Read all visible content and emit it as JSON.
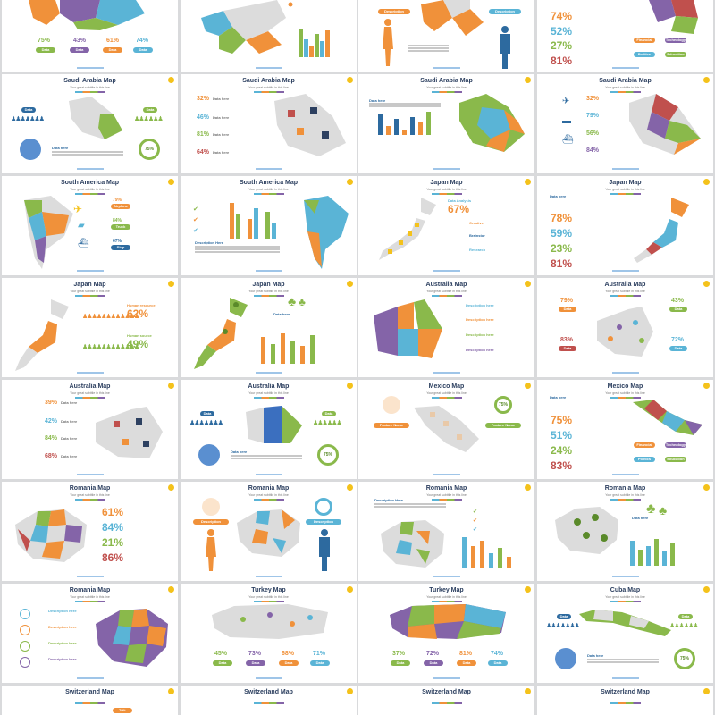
{
  "colors": {
    "blue": "#5ab4d6",
    "orange": "#f0913a",
    "green": "#8ab94b",
    "purple": "#8464a8",
    "red": "#c0504d",
    "navy": "#2d4060",
    "gold": "#f4c21b"
  },
  "slides": [
    {
      "title": "",
      "pcts": [
        "75%",
        "43%",
        "61%",
        "74%"
      ],
      "pills": [
        "Data",
        "Data",
        "Data",
        "Data"
      ]
    },
    {
      "title": "",
      "pcts": [],
      "pills": []
    },
    {
      "title": "",
      "pills": [
        "Description",
        "Description"
      ]
    },
    {
      "title": "",
      "pcts": [
        "74%",
        "52%",
        "27%",
        "81%"
      ],
      "pills": [
        "Financial",
        "Technology",
        "Politics",
        "Education"
      ]
    },
    {
      "title": "Saudi Arabia Map",
      "sub": "Your great subtitle in this line",
      "pills": [
        "Data",
        "Data"
      ],
      "circle": "75%",
      "desc": "Data here"
    },
    {
      "title": "Saudi Arabia Map",
      "sub": "Your great subtitle in this line",
      "pcts": [
        "32%",
        "46%",
        "81%",
        "64%"
      ],
      "pills": [
        "Data here",
        "Data here",
        "Data here",
        "Data here"
      ]
    },
    {
      "title": "Saudi Arabia Map",
      "sub": "Your great subtitle in this line",
      "desc": "Data here"
    },
    {
      "title": "Saudi Arabia Map",
      "sub": "Your great subtitle in this line",
      "pcts": [
        "32%",
        "79%",
        "56%",
        "84%"
      ]
    },
    {
      "title": "South America Map",
      "sub": "Your great subtitle in this line",
      "pcts": [
        "79%",
        "84%",
        "67%"
      ],
      "labels": [
        "Airplane",
        "Truck",
        "Ship"
      ]
    },
    {
      "title": "South America Map",
      "sub": "Your great subtitle in this line",
      "desc": "Description Here"
    },
    {
      "title": "Japan Map",
      "sub": "Your great subtitle in this line",
      "pcts": [
        "67%"
      ],
      "labels": [
        "Data Analysis",
        "Creative",
        "Brainstor",
        "Research"
      ]
    },
    {
      "title": "Japan Map",
      "sub": "Your great subtitle in this line",
      "pcts": [
        "78%",
        "59%",
        "23%",
        "81%"
      ],
      "desc": "Data here"
    },
    {
      "title": "Japan Map",
      "sub": "Your great subtitle in this line",
      "pcts": [
        "62%",
        "49%"
      ],
      "labels": [
        "Human resource",
        "Human source"
      ]
    },
    {
      "title": "Japan Map",
      "sub": "Your great subtitle in this line",
      "desc": "Data here"
    },
    {
      "title": "Australia Map",
      "sub": "Your great subtitle in this line",
      "labels": [
        "Description here",
        "Description here",
        "Description here",
        "Description here"
      ]
    },
    {
      "title": "Australia Map",
      "sub": "Your great subtitle in this line",
      "pcts": [
        "79%",
        "43%",
        "83%",
        "72%"
      ],
      "pills": [
        "Data",
        "Data",
        "Data",
        "Data"
      ]
    },
    {
      "title": "Australia Map",
      "sub": "Your great subtitle in this line",
      "pcts": [
        "39%",
        "42%",
        "84%",
        "68%"
      ],
      "labels": [
        "Data here",
        "Data here",
        "Data here",
        "Data here"
      ]
    },
    {
      "title": "Australia Map",
      "sub": "Your great subtitle in this line",
      "pills": [
        "Data",
        "Data"
      ],
      "circle": "75%",
      "desc": "Data here"
    },
    {
      "title": "Mexico Map",
      "sub": "Your great subtitle in this line",
      "pills": [
        "Feature Name",
        "Feature Name"
      ],
      "circle": "75%"
    },
    {
      "title": "Mexico Map",
      "sub": "Your great subtitle in this line",
      "pcts": [
        "75%",
        "51%",
        "24%",
        "83%"
      ],
      "pills": [
        "Financial",
        "Technology",
        "Politics",
        "Education"
      ],
      "desc": "Data here"
    },
    {
      "title": "Romania Map",
      "sub": "Your great subtitle in this line",
      "pcts": [
        "61%",
        "84%",
        "21%",
        "86%"
      ]
    },
    {
      "title": "Romania Map",
      "sub": "Your great subtitle in this line",
      "pills": [
        "Description",
        "Description"
      ]
    },
    {
      "title": "Romania Map",
      "sub": "Your great subtitle in this line",
      "desc": "Description Here"
    },
    {
      "title": "Romania Map",
      "sub": "Your great subtitle in this line",
      "desc": "Data here"
    },
    {
      "title": "Romania Map",
      "sub": "Your great subtitle in this line",
      "labels": [
        "Description here",
        "Description here",
        "Description here",
        "Description here"
      ]
    },
    {
      "title": "Turkey Map",
      "sub": "Your great subtitle in this line",
      "pcts": [
        "45%",
        "73%",
        "68%",
        "71%"
      ],
      "pills": [
        "Data",
        "Data",
        "Data",
        "Data"
      ]
    },
    {
      "title": "Turkey Map",
      "sub": "Your great subtitle in this line",
      "pcts": [
        "37%",
        "72%",
        "81%",
        "74%"
      ],
      "pills": [
        "Data",
        "Data",
        "Data",
        "Data"
      ]
    },
    {
      "title": "Cuba Map",
      "sub": "Your great subtitle in this line",
      "pills": [
        "Data",
        "Data"
      ],
      "circle": "75%",
      "desc": "Data here"
    },
    {
      "title": "Switzerland Map",
      "sub": "",
      "pills": [
        "79%"
      ]
    },
    {
      "title": "Switzerland Map",
      "sub": ""
    },
    {
      "title": "Switzerland Map",
      "sub": ""
    },
    {
      "title": "Switzerland Map",
      "sub": ""
    }
  ]
}
